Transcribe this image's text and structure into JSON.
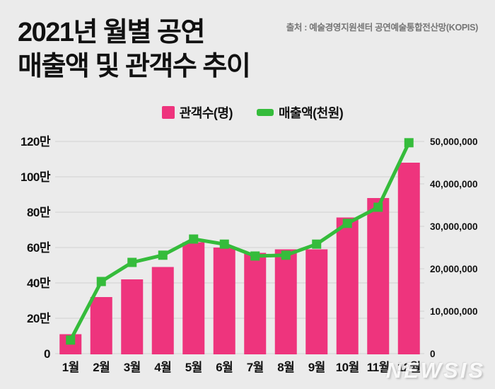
{
  "header": {
    "title_line1": "2021년 월별 공연",
    "title_line2": "매출액 및 관객수 추이",
    "source": "출처 : 예술경영지원센터 공연예술통합전산망(KOPIS)"
  },
  "legend": [
    {
      "label": "관객수(명)",
      "color": "#EE347D",
      "shape": "square"
    },
    {
      "label": "매출액(천원)",
      "color": "#35BC3B",
      "shape": "line"
    }
  ],
  "watermark": "NEWSIS",
  "colors": {
    "background": "#ebebeb",
    "bar": "#EE347D",
    "line": "#35BC3B",
    "grid": "#dedede",
    "axis_text": "#111111",
    "source_text": "#757575"
  },
  "chart_data": {
    "type": "bar",
    "subtype": "bar+line dual axis",
    "title": "2021년 월별 공연 매출액 및 관객수 추이",
    "categories": [
      "1월",
      "2월",
      "3월",
      "4월",
      "5월",
      "6월",
      "7월",
      "8월",
      "9월",
      "10월",
      "11월",
      "12월"
    ],
    "series": [
      {
        "name": "관객수(명)",
        "type": "bar",
        "axis": "left",
        "color": "#EE347D",
        "values": [
          110000,
          320000,
          420000,
          490000,
          630000,
          600000,
          570000,
          590000,
          590000,
          770000,
          880000,
          1080000
        ]
      },
      {
        "name": "매출액(천원)",
        "type": "line",
        "axis": "right",
        "color": "#35BC3B",
        "marker": "square",
        "values": [
          3200000,
          17000000,
          21500000,
          23200000,
          27000000,
          25800000,
          23000000,
          23200000,
          25800000,
          30700000,
          34500000,
          49700000
        ]
      }
    ],
    "left_axis": {
      "range": [
        0,
        1200000
      ],
      "ticks": [
        {
          "label": "120만",
          "value": 1200000
        },
        {
          "label": "100만",
          "value": 1000000
        },
        {
          "label": "80만",
          "value": 800000
        },
        {
          "label": "60만",
          "value": 600000
        },
        {
          "label": "40만",
          "value": 400000
        },
        {
          "label": "20만",
          "value": 200000
        },
        {
          "label": "0",
          "value": 0
        }
      ]
    },
    "right_axis": {
      "range": [
        0,
        50000000
      ],
      "ticks": [
        {
          "label": "50,000,000",
          "value": 50000000
        },
        {
          "label": "40,000,000",
          "value": 40000000
        },
        {
          "label": "30,000,000",
          "value": 30000000
        },
        {
          "label": "20,000,000",
          "value": 20000000
        },
        {
          "label": "10,000,000",
          "value": 10000000
        },
        {
          "label": "0",
          "value": 0
        }
      ]
    },
    "grid": true,
    "legend_position": "top"
  }
}
